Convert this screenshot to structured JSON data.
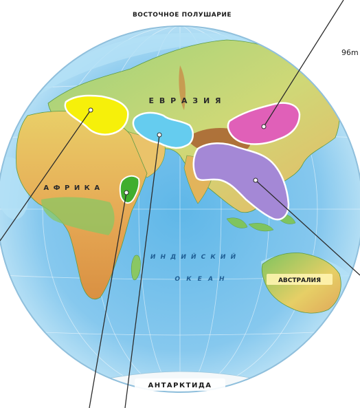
{
  "map": {
    "header_title": "ВОСТОЧНОЕ ПОЛУШАРИЕ",
    "edge_label": "96m",
    "continents": {
      "eurasia": "Е В Р А З И Я",
      "africa": "А Ф Р И К А",
      "australia": "АВСТРАЛИЯ",
      "antarctica": "АНТАРКТИДА"
    },
    "oceans": {
      "indian_1": "И Н Д И Й С К И Й",
      "indian_2": "О К Е А Н"
    },
    "colors": {
      "ocean_deep": "#59b3e6",
      "ocean_shallow": "#a9dcf4",
      "land_green": "#7fc45f",
      "land_yellow": "#e7cf5e",
      "land_orange": "#e0a85a",
      "land_brown": "#b46a3a",
      "highlight_yellow": "#f6f00a",
      "highlight_cyan": "#65ccef",
      "highlight_magenta": "#e060b8",
      "highlight_purple": "#a488d6",
      "highlight_green": "#3fae2e",
      "outline": "#1a1a1a"
    },
    "highlight_regions": [
      {
        "name": "mediterranean",
        "color": "highlight_yellow"
      },
      {
        "name": "arabian-gulf",
        "color": "highlight_cyan"
      },
      {
        "name": "central-asia-east",
        "color": "highlight_magenta"
      },
      {
        "name": "south-east-asia",
        "color": "highlight_purple"
      },
      {
        "name": "horn-of-africa",
        "color": "highlight_green"
      }
    ]
  }
}
